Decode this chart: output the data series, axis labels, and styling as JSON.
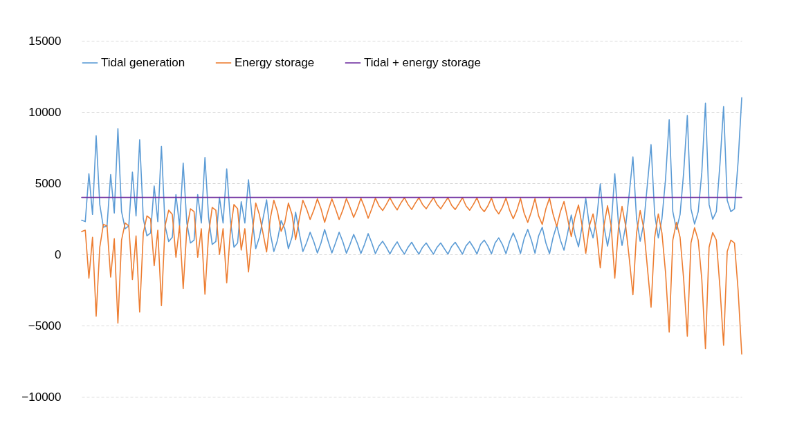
{
  "chart_data": {
    "type": "line",
    "categories": [
      null,
      null,
      null,
      null,
      null,
      null,
      null,
      null,
      null,
      null,
      null,
      null,
      null,
      null,
      null,
      null,
      null,
      null,
      null,
      null,
      null,
      null,
      null,
      null,
      null,
      null,
      null,
      null,
      null,
      null,
      null,
      null,
      null,
      null,
      null,
      null,
      null,
      null,
      null,
      null,
      null,
      null,
      null,
      null,
      null,
      null,
      null,
      null,
      null,
      null,
      null,
      null,
      null,
      null,
      null,
      null,
      null,
      null,
      null,
      null,
      null,
      null,
      null,
      null,
      null,
      null,
      null,
      null,
      null,
      null,
      null,
      null,
      null,
      null,
      null,
      null,
      null,
      null,
      null,
      null,
      null,
      null,
      null,
      null,
      null,
      null,
      null,
      null,
      null,
      null,
      null,
      null,
      null,
      null,
      null,
      null,
      null,
      null,
      null,
      null,
      null,
      null,
      null,
      null,
      null,
      null,
      null,
      null,
      null,
      null,
      null,
      null,
      null,
      null,
      null,
      null,
      null,
      null,
      null,
      null,
      null,
      null,
      null,
      null,
      null,
      null,
      null,
      null,
      null,
      null,
      null,
      null,
      null,
      null,
      null,
      null,
      null,
      null,
      null,
      null,
      null,
      null,
      null,
      null,
      null,
      null,
      null,
      null,
      null,
      null,
      null,
      null,
      null,
      null,
      null,
      null,
      null,
      null,
      null,
      null,
      null,
      null,
      null,
      null,
      null,
      null,
      null,
      null,
      null,
      null,
      null,
      null,
      null,
      null,
      null,
      null,
      null,
      null,
      null,
      null,
      null,
      null,
      null
    ],
    "series": [
      {
        "name": "Tidal generation",
        "color": "#5b9bd5",
        "values": [
          2400,
          2300,
          5670,
          2800,
          8340,
          3500,
          1900,
          2000,
          5600,
          2900,
          8830,
          3000,
          1800,
          2000,
          5770,
          2700,
          8050,
          2500,
          1300,
          1500,
          4800,
          2300,
          7600,
          2000,
          900,
          1200,
          4200,
          2000,
          6400,
          2200,
          800,
          1000,
          4200,
          2200,
          6800,
          2600,
          700,
          900,
          4000,
          2200,
          6000,
          2400,
          500,
          800,
          3700,
          2200,
          5240,
          2600,
          400,
          1200,
          2500,
          3830,
          1500,
          200,
          1000,
          2380,
          1800,
          400,
          1200,
          2960,
          1500,
          200,
          800,
          1550,
          900,
          100,
          800,
          1750,
          900,
          100,
          800,
          1550,
          900,
          80,
          700,
          1400,
          800,
          60,
          700,
          1460,
          800,
          50,
          600,
          920,
          500,
          30,
          500,
          880,
          400,
          20,
          500,
          850,
          400,
          20,
          500,
          800,
          400,
          20,
          500,
          800,
          400,
          20,
          550,
          850,
          450,
          20,
          600,
          900,
          500,
          30,
          700,
          1000,
          600,
          40,
          800,
          1160,
          700,
          50,
          900,
          1500,
          900,
          60,
          1100,
          1750,
          1000,
          80,
          1300,
          1900,
          800,
          50,
          1200,
          2040,
          1000,
          290,
          1500,
          2760,
          1400,
          530,
          2000,
          3930,
          2000,
          1160,
          2500,
          4950,
          2000,
          580,
          2000,
          5670,
          2200,
          630,
          2000,
          4300,
          6840,
          2500,
          920,
          2200,
          4950,
          7710,
          2800,
          1160,
          2500,
          5290,
          9460,
          3000,
          1750,
          2800,
          5770,
          9750,
          3200,
          2130,
          3000,
          5770,
          10620,
          3500,
          2470,
          3000,
          6350,
          10380,
          3800,
          3000,
          3200,
          6500,
          11000
        ]
      },
      {
        "name": "Energy storage",
        "color": "#ed7d31",
        "values": [
          1600,
          1700,
          -1670,
          1200,
          -4340,
          500,
          2100,
          2000,
          -1600,
          1100,
          -4830,
          1000,
          2200,
          2000,
          -1770,
          1300,
          -4050,
          1500,
          2700,
          2500,
          -800,
          1700,
          -3600,
          2000,
          3100,
          2800,
          -200,
          2000,
          -2400,
          1800,
          3200,
          3000,
          -200,
          1800,
          -2800,
          1400,
          3300,
          3100,
          0,
          1800,
          -2000,
          1600,
          3500,
          3200,
          300,
          1800,
          -1240,
          1400,
          3600,
          2800,
          1500,
          170,
          2500,
          3800,
          3000,
          1620,
          2200,
          3600,
          2800,
          1040,
          2500,
          3800,
          3200,
          2450,
          3100,
          3900,
          3200,
          2250,
          3100,
          3900,
          3200,
          2450,
          3100,
          3920,
          3300,
          2600,
          3200,
          3940,
          3300,
          2540,
          3200,
          3950,
          3400,
          3080,
          3500,
          3970,
          3500,
          3120,
          3600,
          3980,
          3500,
          3150,
          3600,
          3980,
          3500,
          3200,
          3600,
          3980,
          3500,
          3200,
          3600,
          3980,
          3450,
          3150,
          3550,
          3980,
          3400,
          3100,
          3500,
          3970,
          3300,
          3000,
          3400,
          3960,
          3200,
          2840,
          3300,
          3950,
          3100,
          2500,
          3100,
          3940,
          2900,
          2250,
          3000,
          3920,
          2700,
          2100,
          3200,
          3950,
          2800,
          1960,
          3000,
          3710,
          2500,
          1240,
          2600,
          3470,
          2000,
          70,
          2000,
          2840,
          1500,
          -950,
          2000,
          3420,
          2000,
          -1670,
          1800,
          3370,
          2000,
          -300,
          -2840,
          1500,
          3080,
          1800,
          -950,
          -3710,
          1200,
          2840,
          1500,
          -1290,
          -5460,
          1000,
          2250,
          1200,
          -1770,
          -5750,
          800,
          1870,
          1000,
          -1770,
          -6620,
          500,
          1530,
          1000,
          -2350,
          -6380,
          200,
          1000,
          800,
          -2500,
          -7000
        ]
      },
      {
        "name": "Tidal + energy storage",
        "color": "#7030a0",
        "values": [
          4000,
          4000,
          4000,
          4000,
          4000,
          4000,
          4000,
          4000,
          4000,
          4000,
          4000,
          4000,
          4000,
          4000,
          4000,
          4000,
          4000,
          4000,
          4000,
          4000,
          4000,
          4000,
          4000,
          4000,
          4000,
          4000,
          4000,
          4000,
          4000,
          4000,
          4000,
          4000,
          4000,
          4000,
          4000,
          4000,
          4000,
          4000,
          4000,
          4000,
          4000,
          4000,
          4000,
          4000,
          4000,
          4000,
          4000,
          4000,
          4000,
          4000,
          4000,
          4000,
          4000,
          4000,
          4000,
          4000,
          4000,
          4000,
          4000,
          4000,
          4000,
          4000,
          4000,
          4000,
          4000,
          4000,
          4000,
          4000,
          4000,
          4000,
          4000,
          4000,
          4000,
          4000,
          4000,
          4000,
          4000,
          4000,
          4000,
          4000,
          4000,
          4000,
          4000,
          4000,
          4000,
          4000,
          4000,
          4000,
          4000,
          4000,
          4000,
          4000,
          4000,
          4000,
          4000,
          4000,
          4000,
          4000,
          4000,
          4000,
          4000,
          4000,
          4000,
          4000,
          4000,
          4000,
          4000,
          4000,
          4000,
          4000,
          4000,
          4000,
          4000,
          4000,
          4000,
          4000,
          4000,
          4000,
          4000,
          4000,
          4000,
          4000,
          4000,
          4000,
          4000,
          4000,
          4000,
          4000,
          4000,
          4000,
          4000,
          4000,
          4000,
          4000,
          4000,
          4000,
          4000,
          4000,
          4000,
          4000,
          4000,
          4000,
          4000,
          4000,
          4000,
          4000,
          4000,
          4000,
          4000,
          4000,
          4000,
          4000,
          4000,
          4000,
          4000,
          4000,
          4000,
          4000,
          4000,
          4000,
          4000,
          4000,
          4000,
          4000,
          4000,
          4000,
          4000,
          4000,
          4000,
          4000,
          4000,
          4000,
          4000,
          4000,
          4000,
          4000,
          4000,
          4000,
          4000,
          4000,
          4000,
          4000,
          4000
        ]
      }
    ],
    "ylim": [
      -10000,
      15000
    ],
    "yticks": [
      -10000,
      -5000,
      0,
      5000,
      10000,
      15000
    ],
    "tick_labels": "y",
    "grid": "y",
    "legend": "top",
    "marker": "none",
    "line_style": "solid"
  }
}
